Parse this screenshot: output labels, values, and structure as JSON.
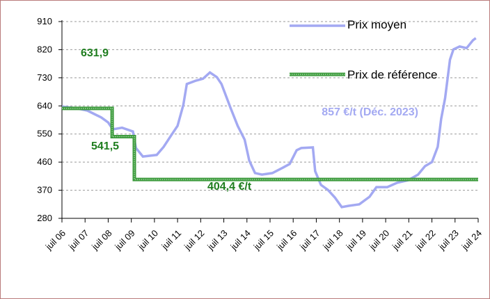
{
  "chart_data": {
    "type": "line",
    "xlim": [
      2006.5,
      2024.5
    ],
    "xticks": [
      {
        "value": 2006.5,
        "label": "juil 06"
      },
      {
        "value": 2007.5,
        "label": "juil 07"
      },
      {
        "value": 2008.5,
        "label": "juil 08"
      },
      {
        "value": 2009.5,
        "label": "juil 09"
      },
      {
        "value": 2010.5,
        "label": "juil 10"
      },
      {
        "value": 2011.5,
        "label": "juil 11"
      },
      {
        "value": 2012.5,
        "label": "juil 12"
      },
      {
        "value": 2013.5,
        "label": "juil 13"
      },
      {
        "value": 2014.5,
        "label": "juil 14"
      },
      {
        "value": 2015.5,
        "label": "juil 15"
      },
      {
        "value": 2016.5,
        "label": "juil 16"
      },
      {
        "value": 2017.5,
        "label": "juil 17"
      },
      {
        "value": 2018.5,
        "label": "juil 18"
      },
      {
        "value": 2019.5,
        "label": "juil 19"
      },
      {
        "value": 2020.5,
        "label": "juil 20"
      },
      {
        "value": 2021.5,
        "label": "juil 21"
      },
      {
        "value": 2022.5,
        "label": "juil 22"
      },
      {
        "value": 2023.5,
        "label": "juil 23"
      },
      {
        "value": 2024.5,
        "label": "juil 24"
      }
    ],
    "ylim": [
      280,
      910
    ],
    "yticks": [
      280,
      370,
      460,
      550,
      640,
      730,
      820,
      910
    ],
    "grid": true,
    "series": [
      {
        "name": "Prix moyen",
        "color": "#a3a9f2",
        "x": [
          2006.5,
          2007.16,
          2007.6,
          2007.9,
          2008.2,
          2008.5,
          2008.7,
          2009.1,
          2009.57,
          2009.7,
          2010.0,
          2010.6,
          2010.9,
          2011.2,
          2011.5,
          2011.75,
          2011.9,
          2012.3,
          2012.6,
          2012.9,
          2013.2,
          2013.4,
          2013.8,
          2014.1,
          2014.4,
          2014.6,
          2014.85,
          2015.15,
          2015.6,
          2016.05,
          2016.35,
          2016.65,
          2016.85,
          2017.35,
          2017.45,
          2017.7,
          2018.0,
          2018.3,
          2018.6,
          2018.9,
          2019.36,
          2019.8,
          2020.1,
          2020.57,
          2021.0,
          2021.47,
          2021.9,
          2022.2,
          2022.5,
          2022.75,
          2022.9,
          2023.07,
          2023.28,
          2023.43,
          2023.7,
          2024.0,
          2024.27,
          2024.4
        ],
        "values": [
          638,
          632,
          625,
          614,
          603,
          587,
          565,
          570,
          558,
          505,
          478,
          483,
          509,
          543,
          576,
          643,
          710,
          721,
          727,
          747,
          732,
          710,
          632,
          576,
          532,
          465,
          425,
          420,
          425,
          442,
          454,
          498,
          505,
          507,
          431,
          387,
          371,
          347,
          316,
          320,
          325,
          349,
          380,
          380,
          394,
          402,
          420,
          447,
          460,
          509,
          598,
          665,
          788,
          821,
          830,
          825,
          850,
          857
        ]
      },
      {
        "name": "Prix de référence",
        "color": "#3c9a3c",
        "x": [
          2006.5,
          2008.67,
          2008.67,
          2009.63,
          2009.63,
          2024.5
        ],
        "values": [
          631.9,
          631.9,
          541.5,
          541.5,
          404.4,
          404.4
        ]
      }
    ],
    "annotations": [
      {
        "text": "631,9",
        "color": "#1e7d1e"
      },
      {
        "text": "541,5",
        "color": "#1e7d1e"
      },
      {
        "text": "404,4 €/t",
        "color": "#1e7d1e"
      },
      {
        "text": "857 €/t (Déc. 2023)",
        "color": "#a3a9f2"
      }
    ]
  }
}
